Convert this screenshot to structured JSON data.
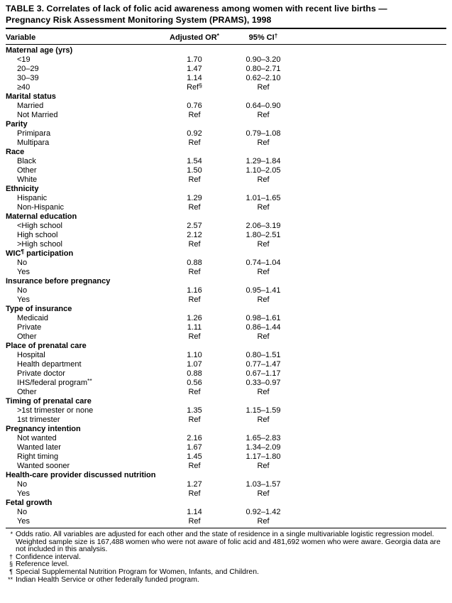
{
  "title_lines": [
    "TABLE 3. Correlates of lack of folic acid awareness among women with recent live births —",
    "Pregnancy Risk Assessment Monitoring System (PRAMS), 1998"
  ],
  "table": {
    "columns": [
      {
        "text": "Variable"
      },
      {
        "text": "Adjusted OR",
        "sup": "*"
      },
      {
        "text": "95% CI",
        "sup": "†"
      }
    ],
    "groups": [
      {
        "label": "Maternal age (yrs)",
        "rows": [
          {
            "label": "<19",
            "or": "1.70",
            "ci": "0.90–3.20"
          },
          {
            "label": "20–29",
            "or": "1.47",
            "ci": "0.80–2.71"
          },
          {
            "label": "30–39",
            "or": "1.14",
            "ci": "0.62–2.10"
          },
          {
            "label": "≥40",
            "or": "Ref",
            "or_sup": "§",
            "ci": "Ref"
          }
        ]
      },
      {
        "label": "Marital status",
        "rows": [
          {
            "label": "Married",
            "or": "0.76",
            "ci": "0.64–0.90"
          },
          {
            "label": "Not Married",
            "or": "Ref",
            "ci": "Ref"
          }
        ]
      },
      {
        "label": "Parity",
        "rows": [
          {
            "label": "Primipara",
            "or": "0.92",
            "ci": "0.79–1.08"
          },
          {
            "label": "Multipara",
            "or": "Ref",
            "ci": "Ref"
          }
        ]
      },
      {
        "label": "Race",
        "rows": [
          {
            "label": "Black",
            "or": "1.54",
            "ci": "1.29–1.84"
          },
          {
            "label": "Other",
            "or": "1.50",
            "ci": "1.10–2.05"
          },
          {
            "label": "White",
            "or": "Ref",
            "ci": "Ref"
          }
        ]
      },
      {
        "label": "Ethnicity",
        "rows": [
          {
            "label": "Hispanic",
            "or": "1.29",
            "ci": "1.01–1.65"
          },
          {
            "label": "Non-Hispanic",
            "or": "Ref",
            "ci": "Ref"
          }
        ]
      },
      {
        "label": "Maternal education",
        "rows": [
          {
            "label": "<High school",
            "or": "2.57",
            "ci": "2.06–3.19"
          },
          {
            "label": "High school",
            "or": "2.12",
            "ci": "1.80–2.51"
          },
          {
            "label": ">High school",
            "or": "Ref",
            "ci": "Ref"
          }
        ]
      },
      {
        "label": "WIC",
        "sup": "¶",
        "after": " participation",
        "rows": [
          {
            "label": "No",
            "or": "0.88",
            "ci": "0.74–1.04"
          },
          {
            "label": "Yes",
            "or": "Ref",
            "ci": "Ref"
          }
        ]
      },
      {
        "label": "Insurance before pregnancy",
        "rows": [
          {
            "label": "No",
            "or": "1.16",
            "ci": "0.95–1.41"
          },
          {
            "label": "Yes",
            "or": "Ref",
            "ci": "Ref"
          }
        ]
      },
      {
        "label": "Type of insurance",
        "rows": [
          {
            "label": "Medicaid",
            "or": "1.26",
            "ci": "0.98–1.61"
          },
          {
            "label": "Private",
            "or": "1.11",
            "ci": "0.86–1.44"
          },
          {
            "label": "Other",
            "or": "Ref",
            "ci": "Ref"
          }
        ]
      },
      {
        "label": "Place of prenatal care",
        "rows": [
          {
            "label": "Hospital",
            "or": "1.10",
            "ci": "0.80–1.51"
          },
          {
            "label": "Health department",
            "or": "1.07",
            "ci": "0.77–1.47"
          },
          {
            "label": "Private doctor",
            "or": "0.88",
            "ci": "0.67–1.17"
          },
          {
            "label": "IHS/federal program",
            "sup": "**",
            "or": "0.56",
            "ci": "0.33–0.97"
          },
          {
            "label": "Other",
            "or": "Ref",
            "ci": "Ref"
          }
        ]
      },
      {
        "label": "Timing of prenatal care",
        "rows": [
          {
            "label": ">1st trimester or none",
            "or": "1.35",
            "ci": "1.15–1.59"
          },
          {
            "label": "1st trimester",
            "or": "Ref",
            "ci": "Ref"
          }
        ]
      },
      {
        "label": "Pregnancy intention",
        "rows": [
          {
            "label": "Not wanted",
            "or": "2.16",
            "ci": "1.65–2.83"
          },
          {
            "label": "Wanted later",
            "or": "1.67",
            "ci": "1.34–2.09"
          },
          {
            "label": "Right timing",
            "or": "1.45",
            "ci": "1.17–1.80"
          },
          {
            "label": "Wanted sooner",
            "or": "Ref",
            "ci": "Ref"
          }
        ]
      },
      {
        "label": "Health-care provider discussed nutrition",
        "rows": [
          {
            "label": "No",
            "or": "1.27",
            "ci": "1.03–1.57"
          },
          {
            "label": "Yes",
            "or": "Ref",
            "ci": "Ref"
          }
        ]
      },
      {
        "label": "Fetal growth",
        "rows": [
          {
            "label": "No",
            "or": "1.14",
            "ci": "0.92–1.42"
          },
          {
            "label": "Yes",
            "or": "Ref",
            "ci": "Ref"
          }
        ]
      }
    ]
  },
  "footnotes": [
    {
      "marker": "*",
      "text": "Odds ratio. All variables are adjusted for each other and the state of residence in a single multivariable logistic regression model. Weighted sample size is 167,488 women who were not aware of folic acid and 481,692 women who were aware. Georgia data are not included in this analysis."
    },
    {
      "marker": "†",
      "text": "Confidence interval."
    },
    {
      "marker": "§",
      "text": "Reference level."
    },
    {
      "marker": "¶",
      "text": "Special Supplemental Nutrition Program for Women, Infants, and Children."
    },
    {
      "marker": "**",
      "text": "Indian Health Service or other federally funded program."
    }
  ]
}
